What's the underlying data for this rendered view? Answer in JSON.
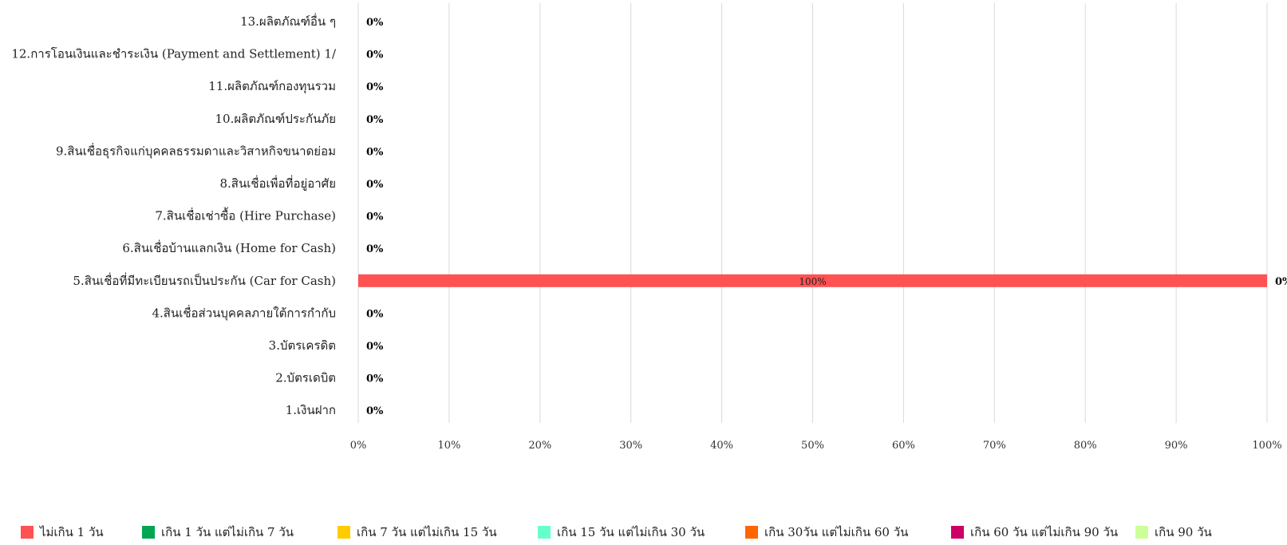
{
  "chart_data": {
    "type": "bar",
    "orientation": "horizontal",
    "stacked": true,
    "percent_stacked": true,
    "categories": [
      "13.ผลิตภัณฑ์อื่น ๆ",
      "12.การโอนเงินและชำระเงิน (Payment and Settlement) 1/",
      "11.ผลิตภัณฑ์กองทุนรวม",
      "10.ผลิตภัณฑ์ประกันภัย",
      "9.สินเชื่อธุรกิจแก่บุคคลธรรมดาและวิสาหกิจขนาดย่อม",
      "8.สินเชื่อเพื่อที่อยู่อาศัย",
      "7.สินเชื่อเช่าซื้อ (Hire Purchase)",
      "6.สินเชื่อบ้านแลกเงิน (Home for Cash)",
      "5.สินเชื่อที่มีทะเบียนรถเป็นประกัน (Car for Cash)",
      "4.สินเชื่อส่วนบุคคลภายใต้การกำกับ",
      "3.บัตรเครดิต",
      "2.บัตรเดบิต",
      "1.เงินฝาก"
    ],
    "series": [
      {
        "name": "ไม่เกิน 1 วัน",
        "color": "#ff5252",
        "values": [
          0,
          0,
          0,
          0,
          0,
          0,
          0,
          0,
          100,
          0,
          0,
          0,
          0
        ]
      },
      {
        "name": "เกิน 1 วัน แต่ไม่เกิน 7 วัน",
        "color": "#00a651",
        "values": [
          0,
          0,
          0,
          0,
          0,
          0,
          0,
          0,
          0,
          0,
          0,
          0,
          0
        ]
      },
      {
        "name": "เกิน 7 วัน แต่ไม่เกิน 15 วัน",
        "color": "#ffcc00",
        "values": [
          0,
          0,
          0,
          0,
          0,
          0,
          0,
          0,
          0,
          0,
          0,
          0,
          0
        ]
      },
      {
        "name": "เกิน 15 วัน แต่ไม่เกิน 30 วัน",
        "color": "#66ffcc",
        "values": [
          0,
          0,
          0,
          0,
          0,
          0,
          0,
          0,
          0,
          0,
          0,
          0,
          0
        ]
      },
      {
        "name": "เกิน 30วัน แต่ไม่เกิน 60 วัน",
        "color": "#ff6600",
        "values": [
          0,
          0,
          0,
          0,
          0,
          0,
          0,
          0,
          0,
          0,
          0,
          0,
          0
        ]
      },
      {
        "name": "เกิน 60 วัน แต่ไม่เกิน 90 วัน",
        "color": "#cc0066",
        "values": [
          0,
          0,
          0,
          0,
          0,
          0,
          0,
          0,
          0,
          0,
          0,
          0,
          0
        ]
      },
      {
        "name": "เกิน 90 วัน",
        "color": "#ccff99",
        "values": [
          0,
          0,
          0,
          0,
          0,
          0,
          0,
          0,
          0,
          0,
          0,
          0,
          0
        ]
      }
    ],
    "bar_labels": [
      "",
      "",
      "",
      "",
      "",
      "",
      "",
      "",
      "100%",
      "",
      "",
      "",
      ""
    ],
    "end_labels": [
      "0%",
      "0%",
      "0%",
      "0%",
      "0%",
      "0%",
      "0%",
      "0%",
      "0%",
      "0%",
      "0%",
      "0%",
      "0%"
    ],
    "x_ticks": [
      "0%",
      "10%",
      "20%",
      "30%",
      "40%",
      "50%",
      "60%",
      "70%",
      "80%",
      "90%",
      "100%"
    ],
    "xlim": [
      0,
      100
    ],
    "grid": true,
    "legend_position": "bottom"
  }
}
